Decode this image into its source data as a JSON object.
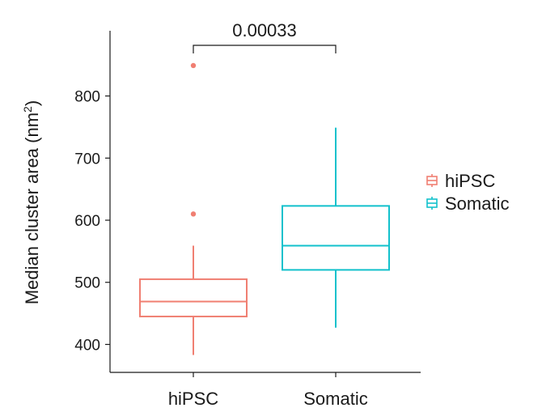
{
  "chart_data": {
    "type": "box",
    "title": "",
    "xlabel": "",
    "ylabel": "Median cluster area (nm²)",
    "ylabel_parts": {
      "main": "Median cluster area (nm",
      "sup": "2",
      "end": ")"
    },
    "ylim": [
      355,
      905
    ],
    "yticks": [
      400,
      500,
      600,
      700,
      800
    ],
    "categories": [
      "hiPSC",
      "Somatic"
    ],
    "series": [
      {
        "name": "hiPSC",
        "color": "#F07F72",
        "whisker_low": 383,
        "q1": 445,
        "median": 469,
        "q3": 505,
        "whisker_high": 559,
        "outliers": [
          610,
          849
        ]
      },
      {
        "name": "Somatic",
        "color": "#12C1CC",
        "whisker_low": 427,
        "q1": 520,
        "median": 559,
        "q3": 623,
        "whisker_high": 749,
        "outliers": []
      }
    ],
    "significance": {
      "label": "0.00033",
      "between": [
        "hiPSC",
        "Somatic"
      ],
      "y": 880
    },
    "legend": {
      "position": "right",
      "entries": [
        "hiPSC",
        "Somatic"
      ]
    },
    "grid": false
  }
}
